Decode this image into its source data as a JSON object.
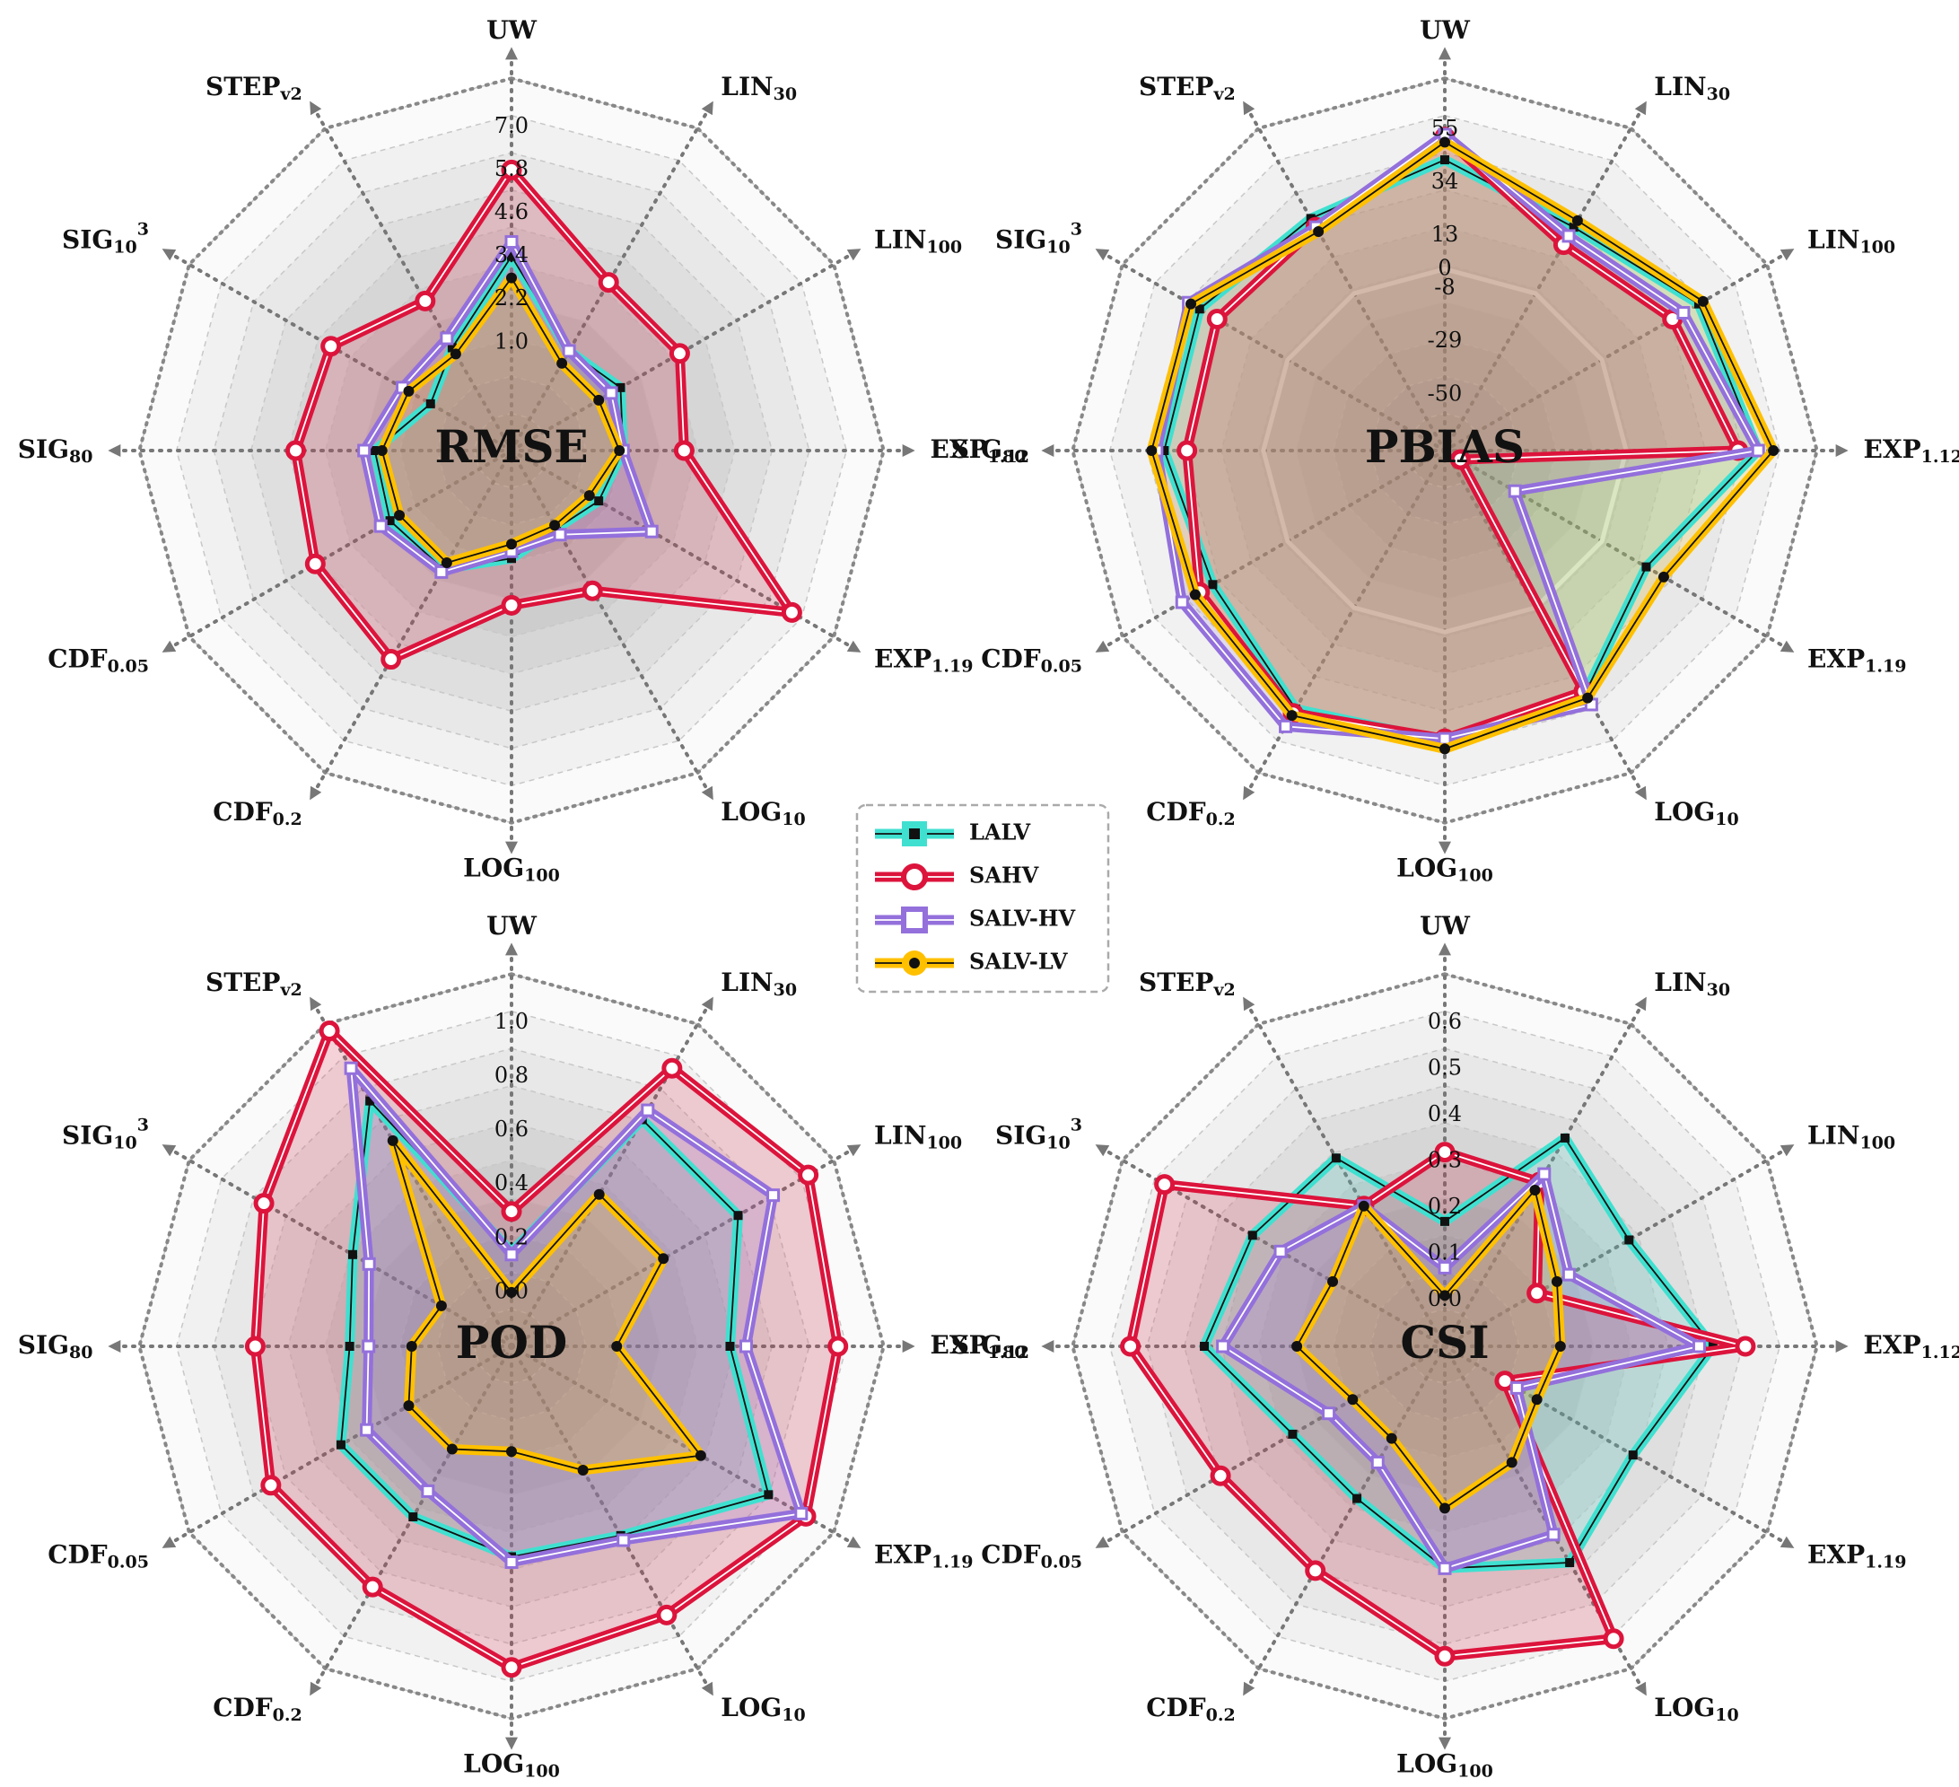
{
  "legend": {
    "items": [
      {
        "label": "LALV",
        "color": "#40E0D0",
        "marker": "square-dark"
      },
      {
        "label": "SAHV",
        "color": "#DC143C",
        "marker": "circle-white"
      },
      {
        "label": "SALV-HV",
        "color": "#9370DB",
        "marker": "square-white"
      },
      {
        "label": "SALV-LV",
        "color": "#FFC000",
        "marker": "circle-dark"
      }
    ]
  },
  "chart_data": [
    {
      "type": "radar",
      "title": "RMSE",
      "axes": [
        "UW",
        "LIN_30",
        "LIN_100",
        "EXP_1.12",
        "EXP_1.19",
        "LOG_10",
        "LOG_100",
        "CDF_0.2",
        "CDF_0.05",
        "SIG_80",
        "SIG_10^3",
        "STEP_v2"
      ],
      "rlim": [
        -2,
        7
      ],
      "tick_values": [
        1.0,
        2.2,
        3.4,
        4.6,
        5.8,
        7.0
      ],
      "tick_labels": [
        "1.0",
        "2.2",
        "3.4",
        "4.6",
        "5.8",
        "7.0"
      ],
      "series": [
        {
          "name": "LALV",
          "values": [
            3.4,
            1.2,
            1.5,
            1.1,
            0.8,
            0.5,
            1.0,
            1.8,
            1.9,
            1.8,
            0.6,
            1.3
          ]
        },
        {
          "name": "SAHV",
          "values": [
            5.8,
            3.4,
            3.4,
            2.8,
            7.0,
            2.5,
            2.3,
            4.7,
            4.3,
            4.0,
            3.8,
            2.8
          ]
        },
        {
          "name": "SALV-HV",
          "values": [
            3.8,
            1.2,
            1.2,
            1.1,
            2.5,
            0.7,
            0.8,
            1.9,
            2.2,
            2.1,
            1.5,
            1.6
          ]
        },
        {
          "name": "SALV-LV",
          "values": [
            2.8,
            0.8,
            0.8,
            1.0,
            0.5,
            0.4,
            0.6,
            1.6,
            1.6,
            1.6,
            1.3,
            1.1
          ]
        }
      ]
    },
    {
      "type": "radar",
      "title": "PBIAS",
      "axes": [
        "UW",
        "LIN_30",
        "LIN_100",
        "EXP_1.12",
        "EXP_1.19",
        "LOG_10",
        "LOG_100",
        "CDF_0.2",
        "CDF_0.05",
        "SIG_80",
        "SIG_10^3",
        "STEP_v2"
      ],
      "tick_values": [
        -50,
        -29,
        -8,
        0,
        13,
        34,
        55
      ],
      "tick_labels": [
        "-50",
        "-29",
        "-8",
        "0",
        "13",
        "34",
        "55"
      ],
      "tick_radius_fraction": [
        0.2,
        0.39,
        0.58,
        0.65,
        0.77,
        0.96,
        1.15
      ],
      "zero_ring_value": 0,
      "series": [
        {
          "name": "LALV",
          "values": [
            43,
            30,
            44,
            52,
            20,
            39,
            43,
            46,
            34,
            39,
            40,
            34
          ]
        },
        {
          "name": "SAHV",
          "values": [
            52,
            22,
            32,
            44,
            -65,
            38,
            42,
            48,
            40,
            30,
            32,
            30
          ]
        },
        {
          "name": "SALV-HV",
          "values": [
            53,
            26,
            37,
            52,
            -40,
            44,
            42,
            54,
            48,
            42,
            45,
            30
          ]
        },
        {
          "name": "SALV-LV",
          "values": [
            50,
            33,
            46,
            58,
            28,
            41,
            46,
            49,
            42,
            44,
            44,
            28
          ]
        }
      ]
    },
    {
      "type": "radar",
      "title": "POD",
      "axes": [
        "UW",
        "LIN_30",
        "LIN_100",
        "EXP_1.12",
        "EXP_1.19",
        "LOG_10",
        "LOG_100",
        "CDF_0.2",
        "CDF_0.05",
        "SIG_80",
        "SIG_10^3",
        "STEP_v2"
      ],
      "rlim": [
        -0.2,
        1.0
      ],
      "tick_values": [
        0.0,
        0.2,
        0.4,
        0.6,
        0.8,
        1.0
      ],
      "tick_labels": [
        "0.0",
        "0.2",
        "0.4",
        "0.6",
        "0.8",
        "1.0"
      ],
      "series": [
        {
          "name": "LALV",
          "values": [
            0.15,
            0.77,
            0.77,
            0.61,
            0.9,
            0.61,
            0.58,
            0.53,
            0.53,
            0.4,
            0.48,
            0.85
          ]
        },
        {
          "name": "SAHV",
          "values": [
            0.3,
            0.99,
            1.07,
            1.01,
            1.06,
            0.95,
            0.99,
            0.83,
            0.83,
            0.75,
            0.86,
            1.15
          ]
        },
        {
          "name": "SALV-HV",
          "values": [
            0.14,
            0.81,
            0.92,
            0.67,
            1.04,
            0.63,
            0.6,
            0.42,
            0.42,
            0.33,
            0.41,
            0.99
          ]
        },
        {
          "name": "SALV-LV",
          "values": [
            0.0,
            0.45,
            0.45,
            0.19,
            0.61,
            0.33,
            0.19,
            0.24,
            0.24,
            0.17,
            0.1,
            0.68
          ]
        }
      ]
    },
    {
      "type": "radar",
      "title": "CSI",
      "axes": [
        "UW",
        "LIN_30",
        "LIN_100",
        "EXP_1.12",
        "EXP_1.19",
        "LOG_10",
        "LOG_100",
        "CDF_0.2",
        "CDF_0.05",
        "SIG_80",
        "SIG_10^3",
        "STEP_v2"
      ],
      "rlim": [
        -0.1,
        0.6
      ],
      "tick_values": [
        0.0,
        0.1,
        0.2,
        0.3,
        0.4,
        0.5,
        0.6
      ],
      "tick_labels": [
        "0.0",
        "0.1",
        "0.2",
        "0.3",
        "0.4",
        "0.5",
        "0.6"
      ],
      "series": [
        {
          "name": "LALV",
          "values": [
            0.17,
            0.42,
            0.36,
            0.48,
            0.37,
            0.44,
            0.38,
            0.28,
            0.28,
            0.42,
            0.38,
            0.37
          ]
        },
        {
          "name": "SAHV",
          "values": [
            0.32,
            0.31,
            0.13,
            0.55,
            0.05,
            0.63,
            0.57,
            0.46,
            0.46,
            0.58,
            0.6,
            0.25
          ]
        },
        {
          "name": "SALV-HV",
          "values": [
            0.07,
            0.33,
            0.21,
            0.45,
            0.08,
            0.37,
            0.38,
            0.19,
            0.19,
            0.38,
            0.31,
            0.25
          ]
        },
        {
          "name": "SALV-LV",
          "values": [
            0.01,
            0.29,
            0.18,
            0.15,
            0.13,
            0.19,
            0.25,
            0.13,
            0.13,
            0.22,
            0.18,
            0.25
          ]
        }
      ]
    }
  ]
}
